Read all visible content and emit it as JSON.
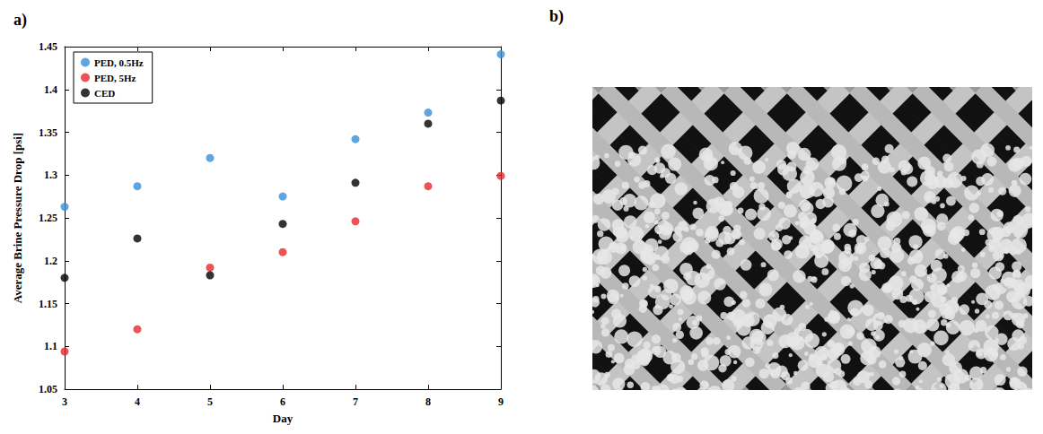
{
  "chart_data": {
    "type": "scatter",
    "panel_label": "a)",
    "x_label": "Day",
    "y_label": "Average Brine Pressure Drop [psi]",
    "x": [
      3,
      4,
      5,
      6,
      7,
      8,
      9
    ],
    "series": [
      {
        "name": "PED, 0.5Hz",
        "color": "#3a8fd8",
        "marker": "circle",
        "values": [
          1.263,
          1.287,
          1.32,
          1.275,
          1.342,
          1.373,
          1.441
        ]
      },
      {
        "name": "PED, 5Hz",
        "color": "#e6282c",
        "marker": "circle",
        "values": [
          1.094,
          1.12,
          1.192,
          1.21,
          1.246,
          1.287,
          1.299
        ]
      },
      {
        "name": "CED",
        "color": "#000000",
        "marker": "circle",
        "values": [
          1.18,
          1.226,
          1.183,
          1.243,
          1.291,
          1.36,
          1.387
        ]
      }
    ],
    "xlim": [
      3,
      9
    ],
    "xticks": [
      3,
      4,
      5,
      6,
      7,
      8,
      9
    ],
    "ylim": [
      1.05,
      1.45
    ],
    "yticks": [
      1.05,
      1.1,
      1.15,
      1.2,
      1.25,
      1.3,
      1.35,
      1.4,
      1.45
    ],
    "grid": false,
    "legend": "top-left"
  },
  "photo": {
    "panel_label": "b)"
  }
}
